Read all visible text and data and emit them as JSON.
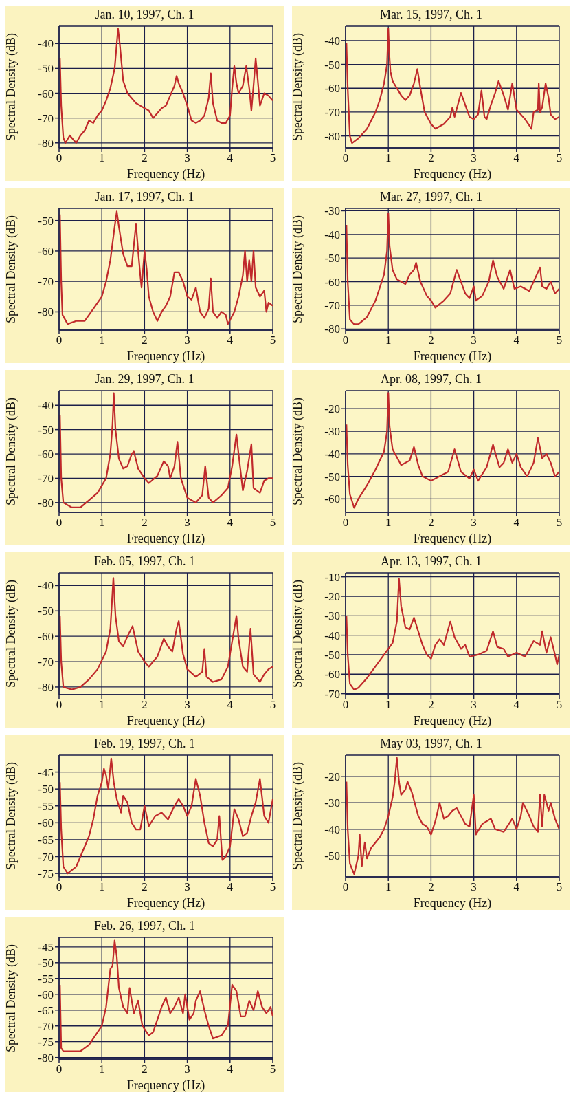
{
  "chart_data": [
    {
      "type": "line",
      "title": "Jan. 10, 1997, Ch. 1",
      "xlabel": "Frequency (Hz)",
      "ylabel": "Spectral Density (dB)",
      "xlim": [
        0,
        5
      ],
      "xticks": [
        0,
        1,
        2,
        3,
        4,
        5
      ],
      "ylim": [
        -82,
        -33
      ],
      "yticks": [
        -40,
        -50,
        -60,
        -70,
        -80
      ],
      "grid": true,
      "color": "#c0292b",
      "x": [
        0.02,
        0.05,
        0.1,
        0.15,
        0.25,
        0.35,
        0.4,
        0.5,
        0.6,
        0.7,
        0.8,
        0.9,
        1.0,
        1.1,
        1.2,
        1.3,
        1.35,
        1.38,
        1.42,
        1.5,
        1.6,
        1.7,
        1.8,
        1.9,
        2.0,
        2.1,
        2.2,
        2.3,
        2.4,
        2.5,
        2.6,
        2.7,
        2.75,
        2.8,
        2.9,
        3.0,
        3.1,
        3.2,
        3.3,
        3.4,
        3.5,
        3.55,
        3.6,
        3.7,
        3.8,
        3.9,
        4.0,
        4.05,
        4.1,
        4.15,
        4.2,
        4.3,
        4.38,
        4.45,
        4.5,
        4.55,
        4.6,
        4.65,
        4.7,
        4.8,
        4.9,
        5.0
      ],
      "values": [
        -46,
        -65,
        -78,
        -80,
        -77,
        -79,
        -80,
        -77,
        -75,
        -71,
        -72,
        -69,
        -67,
        -63,
        -58,
        -50,
        -40,
        -34,
        -40,
        -55,
        -60,
        -62,
        -64,
        -65,
        -66,
        -67,
        -70,
        -68,
        -66,
        -65,
        -61,
        -57,
        -53,
        -56,
        -60,
        -65,
        -71,
        -72,
        -71,
        -69,
        -62,
        -52,
        -64,
        -71,
        -72,
        -72,
        -69,
        -58,
        -49,
        -56,
        -60,
        -57,
        -49,
        -58,
        -67,
        -57,
        -46,
        -55,
        -65,
        -60,
        -61,
        -63
      ]
    },
    {
      "type": "line",
      "title": "Mar. 15, 1997, Ch. 1",
      "xlabel": "Frequency (Hz)",
      "ylabel": "Spectral Density (dB)",
      "xlim": [
        0,
        5
      ],
      "xticks": [
        0,
        1,
        2,
        3,
        4,
        5
      ],
      "ylim": [
        -85,
        -34
      ],
      "yticks": [
        -40,
        -50,
        -60,
        -70,
        -80
      ],
      "grid": true,
      "color": "#c0292b",
      "x": [
        0.02,
        0.05,
        0.1,
        0.15,
        0.3,
        0.5,
        0.7,
        0.8,
        0.9,
        0.97,
        1.0,
        1.02,
        1.05,
        1.1,
        1.2,
        1.3,
        1.4,
        1.5,
        1.6,
        1.68,
        1.75,
        1.85,
        2.0,
        2.1,
        2.3,
        2.45,
        2.5,
        2.55,
        2.7,
        2.8,
        2.9,
        3.0,
        3.1,
        3.18,
        3.25,
        3.3,
        3.4,
        3.5,
        3.58,
        3.7,
        3.8,
        3.9,
        4.0,
        4.2,
        4.35,
        4.4,
        4.5,
        4.52,
        4.55,
        4.6,
        4.68,
        4.75,
        4.8,
        4.9,
        5.0
      ],
      "values": [
        -41,
        -60,
        -80,
        -83,
        -81,
        -77,
        -70,
        -65,
        -58,
        -50,
        -35,
        -45,
        -53,
        -57,
        -60,
        -63,
        -65,
        -63,
        -58,
        -52,
        -60,
        -70,
        -75,
        -77,
        -75,
        -72,
        -68,
        -72,
        -62,
        -67,
        -72,
        -73,
        -71,
        -61,
        -72,
        -73,
        -67,
        -62,
        -57,
        -63,
        -69,
        -58,
        -69,
        -73,
        -77,
        -70,
        -69,
        -58,
        -70,
        -68,
        -58,
        -64,
        -71,
        -73,
        -72
      ]
    },
    {
      "type": "line",
      "title": "Jan. 17, 1997, Ch. 1",
      "xlabel": "Frequency (Hz)",
      "ylabel": "Spectral Density (dB)",
      "xlim": [
        0,
        5
      ],
      "xticks": [
        0,
        1,
        2,
        3,
        4,
        5
      ],
      "ylim": [
        -86,
        -46
      ],
      "yticks": [
        -50,
        -60,
        -70,
        -80
      ],
      "grid": true,
      "color": "#c0292b",
      "x": [
        0.02,
        0.05,
        0.08,
        0.2,
        0.4,
        0.6,
        0.8,
        1.0,
        1.1,
        1.2,
        1.3,
        1.35,
        1.4,
        1.5,
        1.6,
        1.7,
        1.75,
        1.8,
        1.85,
        1.9,
        1.93,
        2.0,
        2.05,
        2.1,
        2.2,
        2.3,
        2.4,
        2.5,
        2.6,
        2.7,
        2.8,
        2.9,
        3.0,
        3.1,
        3.2,
        3.3,
        3.4,
        3.5,
        3.55,
        3.6,
        3.7,
        3.8,
        3.9,
        3.95,
        4.1,
        4.2,
        4.3,
        4.35,
        4.4,
        4.45,
        4.5,
        4.55,
        4.6,
        4.7,
        4.8,
        4.85,
        4.9,
        5.0
      ],
      "values": [
        -48,
        -70,
        -81,
        -84,
        -83,
        -83,
        -79,
        -75,
        -70,
        -63,
        -52,
        -47,
        -52,
        -61,
        -65,
        -65,
        -58,
        -51,
        -60,
        -68,
        -72,
        -60,
        -66,
        -75,
        -80,
        -83,
        -80,
        -78,
        -75,
        -67,
        -67,
        -70,
        -75,
        -76,
        -72,
        -80,
        -82,
        -79,
        -69,
        -80,
        -82,
        -80,
        -81,
        -84,
        -80,
        -75,
        -68,
        -60,
        -70,
        -63,
        -70,
        -60,
        -72,
        -75,
        -73,
        -80,
        -77,
        -78
      ]
    },
    {
      "type": "line",
      "title": "Mar. 27, 1997, Ch. 1",
      "xlabel": "Frequency (Hz)",
      "ylabel": "Spectral Density (dB)",
      "xlim": [
        0,
        5
      ],
      "xticks": [
        0,
        1,
        2,
        3,
        4,
        5
      ],
      "ylim": [
        -80.5,
        -29
      ],
      "yticks": [
        -30,
        -40,
        -50,
        -60,
        -70,
        -80
      ],
      "grid": true,
      "color": "#c0292b",
      "x": [
        0.02,
        0.05,
        0.1,
        0.2,
        0.3,
        0.5,
        0.7,
        0.9,
        0.97,
        1.0,
        1.03,
        1.1,
        1.2,
        1.4,
        1.5,
        1.6,
        1.65,
        1.75,
        1.9,
        2.0,
        2.1,
        2.3,
        2.45,
        2.6,
        2.7,
        2.8,
        2.9,
        3.0,
        3.05,
        3.2,
        3.35,
        3.45,
        3.55,
        3.7,
        3.85,
        3.95,
        4.1,
        4.3,
        4.4,
        4.55,
        4.6,
        4.7,
        4.8,
        4.9,
        5.0
      ],
      "values": [
        -36,
        -60,
        -76,
        -78,
        -78,
        -75,
        -68,
        -57,
        -47,
        -31,
        -45,
        -55,
        -59,
        -61,
        -57,
        -55,
        -52,
        -60,
        -66,
        -68,
        -71,
        -68,
        -65,
        -55,
        -60,
        -65,
        -67,
        -62,
        -68,
        -66,
        -60,
        -51,
        -58,
        -63,
        -55,
        -63,
        -62,
        -64,
        -60,
        -54,
        -62,
        -63,
        -60,
        -65,
        -63
      ]
    },
    {
      "type": "line",
      "title": "Jan. 29, 1997, Ch. 1",
      "xlabel": "Frequency (Hz)",
      "ylabel": "Spectral Density (dB)",
      "xlim": [
        0,
        5
      ],
      "xticks": [
        0,
        1,
        2,
        3,
        4,
        5
      ],
      "ylim": [
        -84,
        -34
      ],
      "yticks": [
        -40,
        -50,
        -60,
        -70,
        -80
      ],
      "grid": true,
      "color": "#c0292b",
      "x": [
        0.02,
        0.05,
        0.1,
        0.3,
        0.5,
        0.7,
        0.9,
        1.1,
        1.2,
        1.25,
        1.28,
        1.32,
        1.4,
        1.5,
        1.6,
        1.7,
        1.75,
        1.85,
        2.0,
        2.1,
        2.3,
        2.45,
        2.55,
        2.6,
        2.7,
        2.77,
        2.85,
        3.0,
        3.2,
        3.35,
        3.42,
        3.5,
        3.6,
        3.8,
        3.95,
        4.05,
        4.15,
        4.2,
        4.3,
        4.4,
        4.5,
        4.55,
        4.7,
        4.8,
        4.9,
        5.0
      ],
      "values": [
        -44,
        -70,
        -80,
        -82,
        -82,
        -79,
        -76,
        -70,
        -60,
        -48,
        -35,
        -50,
        -62,
        -66,
        -65,
        -60,
        -59,
        -66,
        -70,
        -72,
        -69,
        -63,
        -65,
        -70,
        -65,
        -55,
        -70,
        -78,
        -80,
        -77,
        -65,
        -78,
        -80,
        -77,
        -74,
        -65,
        -52,
        -60,
        -75,
        -67,
        -56,
        -74,
        -76,
        -71,
        -70,
        -70
      ]
    },
    {
      "type": "line",
      "title": "Apr. 08, 1997, Ch. 1",
      "xlabel": "Frequency (Hz)",
      "ylabel": "Spectral Density (dB)",
      "xlim": [
        0,
        5
      ],
      "xticks": [
        0,
        1,
        2,
        3,
        4,
        5
      ],
      "ylim": [
        -66,
        -12
      ],
      "yticks": [
        -20,
        -30,
        -40,
        -50,
        -60
      ],
      "grid": true,
      "color": "#c0292b",
      "x": [
        0.02,
        0.05,
        0.1,
        0.2,
        0.3,
        0.5,
        0.7,
        0.9,
        0.97,
        1.0,
        1.03,
        1.1,
        1.3,
        1.5,
        1.6,
        1.7,
        1.8,
        2.0,
        2.2,
        2.4,
        2.55,
        2.7,
        2.9,
        3.0,
        3.1,
        3.3,
        3.45,
        3.6,
        3.7,
        3.8,
        3.9,
        4.0,
        4.1,
        4.25,
        4.4,
        4.5,
        4.6,
        4.7,
        4.8,
        4.9,
        5.0
      ],
      "values": [
        -27,
        -45,
        -58,
        -64,
        -60,
        -54,
        -47,
        -39,
        -30,
        -13,
        -28,
        -38,
        -45,
        -43,
        -37,
        -45,
        -50,
        -52,
        -50,
        -48,
        -38,
        -48,
        -51,
        -47,
        -52,
        -46,
        -36,
        -46,
        -44,
        -38,
        -44,
        -40,
        -46,
        -50,
        -44,
        -33,
        -42,
        -40,
        -44,
        -50,
        -48
      ]
    },
    {
      "type": "line",
      "title": "Feb. 05, 1997, Ch. 1",
      "xlabel": "Frequency (Hz)",
      "ylabel": "Spectral Density (dB)",
      "xlim": [
        0,
        5
      ],
      "xticks": [
        0,
        1,
        2,
        3,
        4,
        5
      ],
      "ylim": [
        -83,
        -35
      ],
      "yticks": [
        -40,
        -50,
        -60,
        -70,
        -80
      ],
      "grid": true,
      "color": "#c0292b",
      "x": [
        0.02,
        0.05,
        0.1,
        0.3,
        0.5,
        0.7,
        0.9,
        1.1,
        1.2,
        1.27,
        1.32,
        1.4,
        1.5,
        1.6,
        1.72,
        1.85,
        2.0,
        2.1,
        2.3,
        2.45,
        2.55,
        2.65,
        2.75,
        2.8,
        2.9,
        3.0,
        3.2,
        3.35,
        3.4,
        3.45,
        3.6,
        3.8,
        3.95,
        4.1,
        4.15,
        4.2,
        4.3,
        4.4,
        4.48,
        4.55,
        4.7,
        4.8,
        4.9,
        5.0
      ],
      "values": [
        -52,
        -70,
        -80,
        -81,
        -80,
        -77,
        -73,
        -66,
        -57,
        -37,
        -52,
        -62,
        -64,
        -60,
        -56,
        -66,
        -70,
        -72,
        -68,
        -61,
        -64,
        -66,
        -57,
        -54,
        -67,
        -73,
        -76,
        -74,
        -65,
        -76,
        -78,
        -77,
        -72,
        -57,
        -52,
        -61,
        -72,
        -74,
        -57,
        -75,
        -78,
        -75,
        -73,
        -72
      ]
    },
    {
      "type": "line",
      "title": "Apr. 13, 1997, Ch. 1",
      "xlabel": "Frequency (Hz)",
      "ylabel": "Spectral Density (dB)",
      "xlim": [
        0,
        5
      ],
      "xticks": [
        0,
        1,
        2,
        3,
        4,
        5
      ],
      "ylim": [
        -70.5,
        -8
      ],
      "yticks": [
        -10,
        -20,
        -30,
        -40,
        -50,
        -60,
        -70
      ],
      "grid": true,
      "color": "#c0292b",
      "x": [
        0.02,
        0.05,
        0.1,
        0.2,
        0.3,
        0.5,
        0.7,
        0.9,
        1.1,
        1.2,
        1.25,
        1.3,
        1.4,
        1.5,
        1.6,
        1.7,
        1.8,
        1.9,
        2.0,
        2.1,
        2.2,
        2.3,
        2.45,
        2.55,
        2.7,
        2.8,
        2.9,
        3.1,
        3.3,
        3.45,
        3.55,
        3.7,
        3.8,
        4.0,
        4.2,
        4.4,
        4.55,
        4.6,
        4.7,
        4.8,
        4.9,
        4.95,
        5.0
      ],
      "values": [
        -30,
        -50,
        -65,
        -68,
        -67,
        -62,
        -56,
        -50,
        -44,
        -33,
        -11,
        -25,
        -36,
        -37,
        -31,
        -38,
        -45,
        -50,
        -52,
        -45,
        -42,
        -45,
        -33,
        -41,
        -47,
        -45,
        -51,
        -50,
        -48,
        -38,
        -46,
        -47,
        -51,
        -49,
        -51,
        -43,
        -45,
        -38,
        -49,
        -41,
        -50,
        -55,
        -50
      ]
    },
    {
      "type": "line",
      "title": "Feb. 19, 1997, Ch. 1",
      "xlabel": "Frequency (Hz)",
      "ylabel": "Spectral Density (dB)",
      "xlim": [
        0,
        5
      ],
      "xticks": [
        0,
        1,
        2,
        3,
        4,
        5
      ],
      "ylim": [
        -76,
        -40
      ],
      "yticks": [
        -45,
        -50,
        -55,
        -60,
        -65,
        -70,
        -75
      ],
      "grid": true,
      "color": "#c0292b",
      "x": [
        0.02,
        0.05,
        0.1,
        0.2,
        0.3,
        0.4,
        0.5,
        0.6,
        0.7,
        0.8,
        0.9,
        1.0,
        1.05,
        1.1,
        1.15,
        1.22,
        1.28,
        1.35,
        1.45,
        1.5,
        1.6,
        1.7,
        1.8,
        1.9,
        2.0,
        2.1,
        2.25,
        2.4,
        2.55,
        2.7,
        2.8,
        2.9,
        3.0,
        3.1,
        3.2,
        3.3,
        3.4,
        3.5,
        3.6,
        3.7,
        3.75,
        3.82,
        3.9,
        4.0,
        4.1,
        4.2,
        4.3,
        4.4,
        4.5,
        4.6,
        4.7,
        4.8,
        4.9,
        5.0
      ],
      "values": [
        -48,
        -62,
        -73,
        -75,
        -74,
        -73,
        -70,
        -67,
        -64,
        -59,
        -52,
        -48,
        -44,
        -46,
        -50,
        -41,
        -48,
        -53,
        -57,
        -52,
        -54,
        -60,
        -62,
        -62,
        -55,
        -61,
        -58,
        -57,
        -59,
        -55,
        -53,
        -55,
        -58,
        -55,
        -47,
        -52,
        -60,
        -66,
        -67,
        -65,
        -58,
        -71,
        -70,
        -67,
        -56,
        -59,
        -64,
        -63,
        -58,
        -54,
        -47,
        -58,
        -60,
        -53
      ]
    },
    {
      "type": "line",
      "title": "May 03, 1997, Ch. 1",
      "xlabel": "Frequency (Hz)",
      "ylabel": "Spectral Density (dB)",
      "xlim": [
        0,
        5
      ],
      "xticks": [
        0,
        1,
        2,
        3,
        4,
        5
      ],
      "ylim": [
        -58,
        -12
      ],
      "yticks": [
        -20,
        -30,
        -40,
        -50
      ],
      "grid": true,
      "color": "#c0292b",
      "x": [
        0.02,
        0.05,
        0.1,
        0.2,
        0.3,
        0.33,
        0.38,
        0.45,
        0.5,
        0.6,
        0.7,
        0.8,
        0.9,
        1.0,
        1.1,
        1.15,
        1.2,
        1.25,
        1.3,
        1.4,
        1.45,
        1.55,
        1.7,
        1.8,
        1.9,
        2.0,
        2.1,
        2.2,
        2.3,
        2.4,
        2.5,
        2.6,
        2.8,
        2.9,
        3.0,
        3.05,
        3.2,
        3.4,
        3.5,
        3.7,
        3.9,
        4.0,
        4.1,
        4.15,
        4.3,
        4.4,
        4.5,
        4.55,
        4.6,
        4.65,
        4.75,
        4.8,
        4.9,
        5.0
      ],
      "values": [
        -22,
        -40,
        -53,
        -57,
        -50,
        -42,
        -54,
        -45,
        -51,
        -47,
        -45,
        -43,
        -40,
        -35,
        -28,
        -22,
        -13,
        -22,
        -27,
        -25,
        -22,
        -26,
        -35,
        -38,
        -39,
        -42,
        -37,
        -30,
        -36,
        -35,
        -33,
        -32,
        -38,
        -39,
        -27,
        -42,
        -38,
        -36,
        -40,
        -41,
        -36,
        -40,
        -35,
        -30,
        -35,
        -39,
        -41,
        -27,
        -39,
        -27,
        -33,
        -30,
        -36,
        -40
      ]
    },
    {
      "type": "line",
      "title": "Feb. 26, 1997, Ch. 1",
      "xlabel": "Frequency (Hz)",
      "ylabel": "Spectral Density (dB)",
      "xlim": [
        0,
        5
      ],
      "xticks": [
        0,
        1,
        2,
        3,
        4,
        5
      ],
      "ylim": [
        -80.5,
        -42
      ],
      "yticks": [
        -45,
        -50,
        -55,
        -60,
        -65,
        -70,
        -75,
        -80
      ],
      "grid": true,
      "color": "#c0292b",
      "x": [
        0.02,
        0.05,
        0.1,
        0.3,
        0.5,
        0.7,
        0.9,
        1.0,
        1.1,
        1.2,
        1.25,
        1.3,
        1.35,
        1.4,
        1.5,
        1.6,
        1.65,
        1.75,
        1.85,
        1.95,
        2.1,
        2.2,
        2.3,
        2.4,
        2.5,
        2.6,
        2.7,
        2.8,
        2.9,
        2.95,
        3.05,
        3.15,
        3.2,
        3.3,
        3.4,
        3.5,
        3.6,
        3.8,
        3.95,
        4.05,
        4.15,
        4.25,
        4.35,
        4.45,
        4.55,
        4.65,
        4.75,
        4.85,
        4.95,
        5.0
      ],
      "values": [
        -57,
        -77,
        -78,
        -78,
        -78,
        -76,
        -72,
        -70,
        -64,
        -52,
        -51,
        -43,
        -48,
        -58,
        -64,
        -66,
        -58,
        -66,
        -62,
        -70,
        -73,
        -72,
        -68,
        -64,
        -61,
        -66,
        -64,
        -61,
        -66,
        -60,
        -68,
        -66,
        -62,
        -59,
        -65,
        -70,
        -74,
        -73,
        -70,
        -57,
        -59,
        -67,
        -67,
        -62,
        -65,
        -59,
        -64,
        -66,
        -64,
        -67
      ]
    }
  ]
}
